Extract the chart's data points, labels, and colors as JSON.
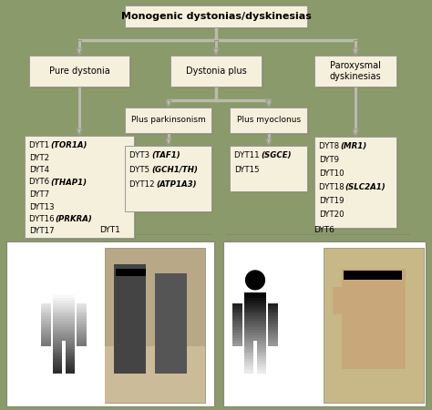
{
  "background_color": "#8a9a6a",
  "title": "Monogenic dystonias/dyskinesias",
  "node_fill": "#f5f0dc",
  "node_border": "#999999",
  "level1": [
    "Pure dystonia",
    "Dystonia plus",
    "Paroxysmal\ndyskinesias"
  ],
  "level2_center": [
    "Plus parkinsonism",
    "Plus myoclonus"
  ],
  "pure_dystonia_lines": [
    [
      "DYT1 ",
      "(TOR1A)"
    ],
    [
      "DYT2",
      ""
    ],
    [
      "DYT4",
      ""
    ],
    [
      "DYT6 ",
      "(THAP1)"
    ],
    [
      "DYT7",
      ""
    ],
    [
      "DYT13",
      ""
    ],
    [
      "DYT16 ",
      "(PRKRA)"
    ],
    [
      "DYT17",
      ""
    ]
  ],
  "plus_parkinsonism_lines": [
    [
      "DYT3 ",
      "(TAF1)"
    ],
    [
      "DYT5 ",
      "(GCH1/TH)"
    ],
    [
      "DYT12 ",
      "(ATP1A3)"
    ]
  ],
  "plus_myoclonus_lines": [
    [
      "DYT11 ",
      "(SGCE)"
    ],
    [
      "DYT15",
      ""
    ]
  ],
  "paroxysmal_lines": [
    [
      "DYT8 ",
      "(MR1)"
    ],
    [
      "DYT9",
      ""
    ],
    [
      "DYT10",
      ""
    ],
    [
      "DYT18 ",
      "(SLC2A1)"
    ],
    [
      "DYT19",
      ""
    ],
    [
      "DYT20",
      ""
    ]
  ],
  "bottom_label_left": "DYT1",
  "bottom_label_right": "DYT6",
  "arrow_color": "#cccccc",
  "panel_border": "#888888"
}
